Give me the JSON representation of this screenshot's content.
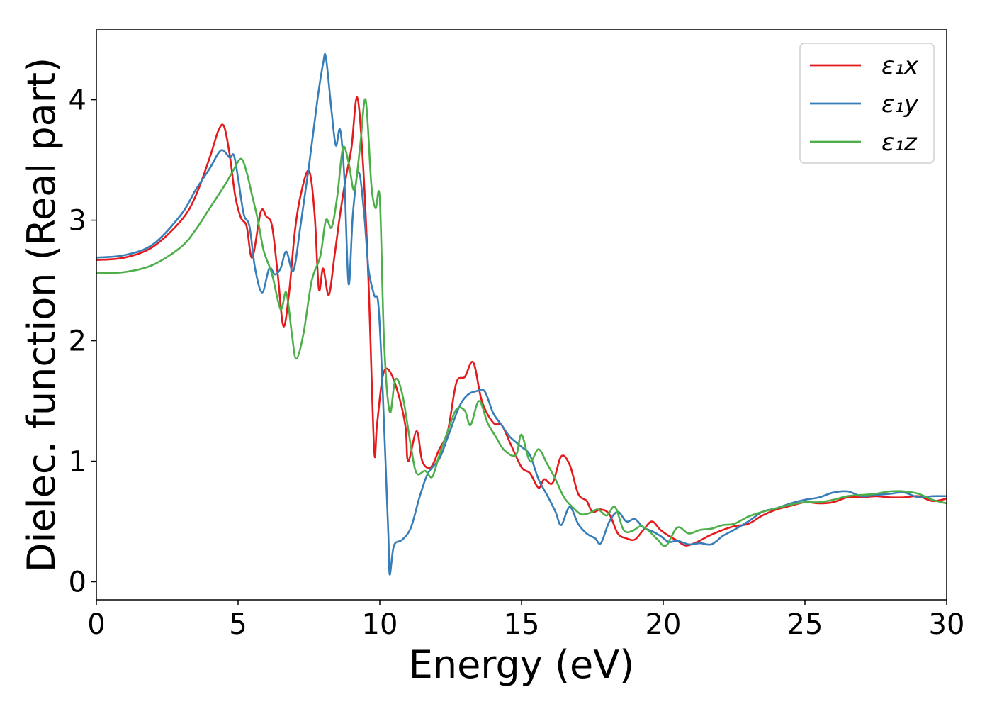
{
  "chart_data": {
    "type": "line",
    "xlabel": "Energy (eV)",
    "ylabel": "Dielec. function (Real part)",
    "xlim": [
      0,
      30
    ],
    "ylim": [
      -0.15,
      4.58
    ],
    "xticks": [
      "0",
      "5",
      "10",
      "15",
      "20",
      "25",
      "30"
    ],
    "xtick_values": [
      0,
      5,
      10,
      15,
      20,
      25,
      30
    ],
    "yticks": [
      "0",
      "1",
      "2",
      "3",
      "4"
    ],
    "ytick_values": [
      0,
      1,
      2,
      3,
      4
    ],
    "grid": false,
    "legend_position": "top-right",
    "series": [
      {
        "name": "ε₁x",
        "color": "#e41a1c",
        "points": [
          [
            0,
            2.67
          ],
          [
            1,
            2.69
          ],
          [
            2,
            2.78
          ],
          [
            3,
            3.0
          ],
          [
            3.5,
            3.2
          ],
          [
            4,
            3.52
          ],
          [
            4.3,
            3.74
          ],
          [
            4.5,
            3.78
          ],
          [
            4.7,
            3.55
          ],
          [
            4.9,
            3.2
          ],
          [
            5.1,
            3.02
          ],
          [
            5.3,
            2.95
          ],
          [
            5.5,
            2.69
          ],
          [
            5.8,
            3.07
          ],
          [
            6.0,
            3.03
          ],
          [
            6.2,
            2.95
          ],
          [
            6.4,
            2.55
          ],
          [
            6.6,
            2.12
          ],
          [
            6.8,
            2.4
          ],
          [
            7.0,
            2.9
          ],
          [
            7.2,
            3.2
          ],
          [
            7.5,
            3.41
          ],
          [
            7.7,
            3.05
          ],
          [
            7.85,
            2.43
          ],
          [
            8.0,
            2.6
          ],
          [
            8.2,
            2.38
          ],
          [
            8.4,
            2.7
          ],
          [
            8.6,
            3.05
          ],
          [
            8.8,
            3.35
          ],
          [
            9.0,
            3.6
          ],
          [
            9.2,
            4.02
          ],
          [
            9.4,
            3.5
          ],
          [
            9.6,
            2.5
          ],
          [
            9.8,
            1.1
          ],
          [
            9.9,
            1.3
          ],
          [
            10.1,
            1.7
          ],
          [
            10.3,
            1.76
          ],
          [
            10.6,
            1.6
          ],
          [
            10.9,
            1.3
          ],
          [
            11.0,
            1.0
          ],
          [
            11.3,
            1.25
          ],
          [
            11.5,
            1.0
          ],
          [
            11.8,
            0.95
          ],
          [
            12.1,
            1.1
          ],
          [
            12.4,
            1.25
          ],
          [
            12.7,
            1.65
          ],
          [
            13.0,
            1.7
          ],
          [
            13.3,
            1.82
          ],
          [
            13.6,
            1.5
          ],
          [
            14.0,
            1.32
          ],
          [
            14.3,
            1.3
          ],
          [
            14.6,
            1.15
          ],
          [
            15.0,
            0.95
          ],
          [
            15.3,
            0.9
          ],
          [
            15.6,
            0.78
          ],
          [
            15.8,
            0.85
          ],
          [
            16.1,
            0.82
          ],
          [
            16.4,
            1.04
          ],
          [
            16.7,
            0.97
          ],
          [
            17.0,
            0.73
          ],
          [
            17.3,
            0.67
          ],
          [
            17.5,
            0.58
          ],
          [
            17.8,
            0.6
          ],
          [
            18.1,
            0.56
          ],
          [
            18.4,
            0.4
          ],
          [
            18.7,
            0.36
          ],
          [
            19.0,
            0.35
          ],
          [
            19.3,
            0.43
          ],
          [
            19.6,
            0.5
          ],
          [
            19.9,
            0.43
          ],
          [
            20.2,
            0.38
          ],
          [
            20.5,
            0.34
          ],
          [
            20.8,
            0.3
          ],
          [
            21.2,
            0.33
          ],
          [
            21.6,
            0.38
          ],
          [
            22.0,
            0.42
          ],
          [
            22.5,
            0.46
          ],
          [
            23.0,
            0.48
          ],
          [
            23.5,
            0.55
          ],
          [
            24.0,
            0.6
          ],
          [
            24.5,
            0.63
          ],
          [
            25.0,
            0.66
          ],
          [
            25.5,
            0.65
          ],
          [
            26.0,
            0.66
          ],
          [
            26.5,
            0.7
          ],
          [
            27.0,
            0.7
          ],
          [
            27.5,
            0.71
          ],
          [
            28.0,
            0.7
          ],
          [
            28.5,
            0.7
          ],
          [
            29.0,
            0.71
          ],
          [
            29.5,
            0.67
          ],
          [
            30.0,
            0.69
          ]
        ]
      },
      {
        "name": "ε₁y",
        "color": "#377eb8",
        "points": [
          [
            0,
            2.69
          ],
          [
            1,
            2.71
          ],
          [
            2,
            2.8
          ],
          [
            3,
            3.05
          ],
          [
            3.5,
            3.25
          ],
          [
            4,
            3.43
          ],
          [
            4.4,
            3.58
          ],
          [
            4.7,
            3.52
          ],
          [
            4.85,
            3.54
          ],
          [
            5.0,
            3.35
          ],
          [
            5.2,
            3.05
          ],
          [
            5.4,
            2.95
          ],
          [
            5.6,
            2.6
          ],
          [
            5.85,
            2.4
          ],
          [
            6.1,
            2.6
          ],
          [
            6.3,
            2.55
          ],
          [
            6.5,
            2.6
          ],
          [
            6.7,
            2.74
          ],
          [
            6.95,
            2.58
          ],
          [
            7.2,
            2.95
          ],
          [
            7.5,
            3.45
          ],
          [
            7.8,
            4.0
          ],
          [
            8.0,
            4.3
          ],
          [
            8.1,
            4.35
          ],
          [
            8.3,
            3.9
          ],
          [
            8.45,
            3.62
          ],
          [
            8.6,
            3.75
          ],
          [
            8.75,
            3.35
          ],
          [
            8.9,
            2.47
          ],
          [
            9.05,
            3.05
          ],
          [
            9.25,
            3.4
          ],
          [
            9.45,
            3.05
          ],
          [
            9.6,
            2.6
          ],
          [
            9.8,
            2.38
          ],
          [
            9.95,
            2.3
          ],
          [
            10.1,
            1.6
          ],
          [
            10.3,
            0.4
          ],
          [
            10.35,
            0.06
          ],
          [
            10.5,
            0.3
          ],
          [
            10.8,
            0.35
          ],
          [
            11.1,
            0.45
          ],
          [
            11.4,
            0.7
          ],
          [
            11.7,
            0.9
          ],
          [
            12.1,
            1.02
          ],
          [
            12.4,
            1.2
          ],
          [
            12.8,
            1.45
          ],
          [
            13.1,
            1.55
          ],
          [
            13.4,
            1.58
          ],
          [
            13.7,
            1.58
          ],
          [
            14.0,
            1.4
          ],
          [
            14.3,
            1.3
          ],
          [
            14.6,
            1.2
          ],
          [
            15.0,
            1.12
          ],
          [
            15.3,
            1.05
          ],
          [
            15.6,
            0.85
          ],
          [
            15.9,
            0.72
          ],
          [
            16.2,
            0.58
          ],
          [
            16.4,
            0.47
          ],
          [
            16.7,
            0.62
          ],
          [
            17.0,
            0.48
          ],
          [
            17.3,
            0.4
          ],
          [
            17.6,
            0.36
          ],
          [
            17.8,
            0.32
          ],
          [
            18.1,
            0.5
          ],
          [
            18.4,
            0.58
          ],
          [
            18.7,
            0.5
          ],
          [
            19.0,
            0.52
          ],
          [
            19.3,
            0.45
          ],
          [
            19.6,
            0.42
          ],
          [
            19.9,
            0.38
          ],
          [
            20.2,
            0.33
          ],
          [
            20.5,
            0.34
          ],
          [
            20.9,
            0.31
          ],
          [
            21.3,
            0.32
          ],
          [
            21.7,
            0.31
          ],
          [
            22.1,
            0.38
          ],
          [
            22.5,
            0.43
          ],
          [
            23.0,
            0.5
          ],
          [
            23.5,
            0.58
          ],
          [
            24.0,
            0.61
          ],
          [
            24.5,
            0.65
          ],
          [
            25.0,
            0.68
          ],
          [
            25.5,
            0.7
          ],
          [
            26.0,
            0.74
          ],
          [
            26.5,
            0.75
          ],
          [
            27.0,
            0.71
          ],
          [
            27.5,
            0.72
          ],
          [
            28.0,
            0.73
          ],
          [
            28.5,
            0.74
          ],
          [
            29.0,
            0.7
          ],
          [
            29.5,
            0.71
          ],
          [
            30.0,
            0.71
          ]
        ]
      },
      {
        "name": "ε₁z",
        "color": "#4daf4a",
        "points": [
          [
            0,
            2.56
          ],
          [
            1,
            2.57
          ],
          [
            2,
            2.63
          ],
          [
            3,
            2.78
          ],
          [
            3.5,
            2.92
          ],
          [
            4,
            3.1
          ],
          [
            4.5,
            3.28
          ],
          [
            4.8,
            3.4
          ],
          [
            5.1,
            3.51
          ],
          [
            5.3,
            3.4
          ],
          [
            5.5,
            3.2
          ],
          [
            5.7,
            3.0
          ],
          [
            5.9,
            2.75
          ],
          [
            6.2,
            2.55
          ],
          [
            6.5,
            2.26
          ],
          [
            6.7,
            2.4
          ],
          [
            6.9,
            2.05
          ],
          [
            7.05,
            1.85
          ],
          [
            7.3,
            2.05
          ],
          [
            7.6,
            2.5
          ],
          [
            7.9,
            2.7
          ],
          [
            8.1,
            3.0
          ],
          [
            8.3,
            2.94
          ],
          [
            8.5,
            3.2
          ],
          [
            8.7,
            3.6
          ],
          [
            8.9,
            3.48
          ],
          [
            9.1,
            3.25
          ],
          [
            9.3,
            3.6
          ],
          [
            9.5,
            4.0
          ],
          [
            9.7,
            3.3
          ],
          [
            9.85,
            3.1
          ],
          [
            10.0,
            3.18
          ],
          [
            10.15,
            2.0
          ],
          [
            10.35,
            1.41
          ],
          [
            10.55,
            1.68
          ],
          [
            10.8,
            1.55
          ],
          [
            11.1,
            1.12
          ],
          [
            11.3,
            0.9
          ],
          [
            11.6,
            0.92
          ],
          [
            11.85,
            0.87
          ],
          [
            12.1,
            1.05
          ],
          [
            12.4,
            1.25
          ],
          [
            12.7,
            1.43
          ],
          [
            13.0,
            1.42
          ],
          [
            13.2,
            1.3
          ],
          [
            13.5,
            1.5
          ],
          [
            13.8,
            1.32
          ],
          [
            14.1,
            1.2
          ],
          [
            14.4,
            1.09
          ],
          [
            14.8,
            1.05
          ],
          [
            15.0,
            1.22
          ],
          [
            15.3,
            1.0
          ],
          [
            15.6,
            1.1
          ],
          [
            15.9,
            0.98
          ],
          [
            16.2,
            0.85
          ],
          [
            16.5,
            0.7
          ],
          [
            16.8,
            0.62
          ],
          [
            17.1,
            0.56
          ],
          [
            17.4,
            0.57
          ],
          [
            17.7,
            0.6
          ],
          [
            18.0,
            0.55
          ],
          [
            18.3,
            0.62
          ],
          [
            18.6,
            0.43
          ],
          [
            18.9,
            0.42
          ],
          [
            19.2,
            0.46
          ],
          [
            19.5,
            0.42
          ],
          [
            19.8,
            0.35
          ],
          [
            20.1,
            0.3
          ],
          [
            20.5,
            0.45
          ],
          [
            20.9,
            0.4
          ],
          [
            21.3,
            0.43
          ],
          [
            21.7,
            0.44
          ],
          [
            22.1,
            0.47
          ],
          [
            22.5,
            0.48
          ],
          [
            23.0,
            0.54
          ],
          [
            23.5,
            0.58
          ],
          [
            24.0,
            0.61
          ],
          [
            24.5,
            0.64
          ],
          [
            25.0,
            0.66
          ],
          [
            25.5,
            0.66
          ],
          [
            26.0,
            0.68
          ],
          [
            26.5,
            0.71
          ],
          [
            27.0,
            0.72
          ],
          [
            27.5,
            0.73
          ],
          [
            28.0,
            0.75
          ],
          [
            28.5,
            0.75
          ],
          [
            29.0,
            0.73
          ],
          [
            29.5,
            0.68
          ],
          [
            30.0,
            0.65
          ]
        ]
      }
    ]
  }
}
